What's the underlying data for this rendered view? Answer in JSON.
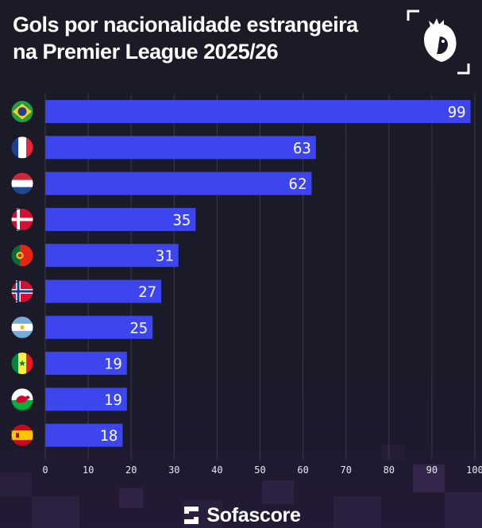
{
  "header": {
    "title_line1": "Gols por nacionalidade estrangeira",
    "title_line2": "na Premier League 2025/26"
  },
  "footer": {
    "brand": "Sofascore"
  },
  "colors": {
    "bar": "#3d46ee",
    "background": "#1a1a26",
    "grid": "#3a3a48",
    "text": "#ffffff"
  },
  "chart_data": {
    "type": "bar",
    "orientation": "horizontal",
    "title": "Gols por nacionalidade estrangeira na Premier League 2025/26",
    "categories": [
      "Brazil",
      "France",
      "Netherlands",
      "Denmark",
      "Portugal",
      "Norway",
      "Argentina",
      "Senegal",
      "Wales",
      "Spain"
    ],
    "flag_icons": [
      "brazil-flag-icon",
      "france-flag-icon",
      "netherlands-flag-icon",
      "denmark-flag-icon",
      "portugal-flag-icon",
      "norway-flag-icon",
      "argentina-flag-icon",
      "senegal-flag-icon",
      "wales-flag-icon",
      "spain-flag-icon"
    ],
    "values": [
      99,
      63,
      62,
      35,
      31,
      27,
      25,
      19,
      19,
      18
    ],
    "xlim": [
      0,
      100
    ],
    "xticks": [
      0,
      10,
      20,
      30,
      40,
      50,
      60,
      70,
      80,
      90,
      100
    ],
    "grid": true,
    "xlabel": "",
    "ylabel": ""
  }
}
